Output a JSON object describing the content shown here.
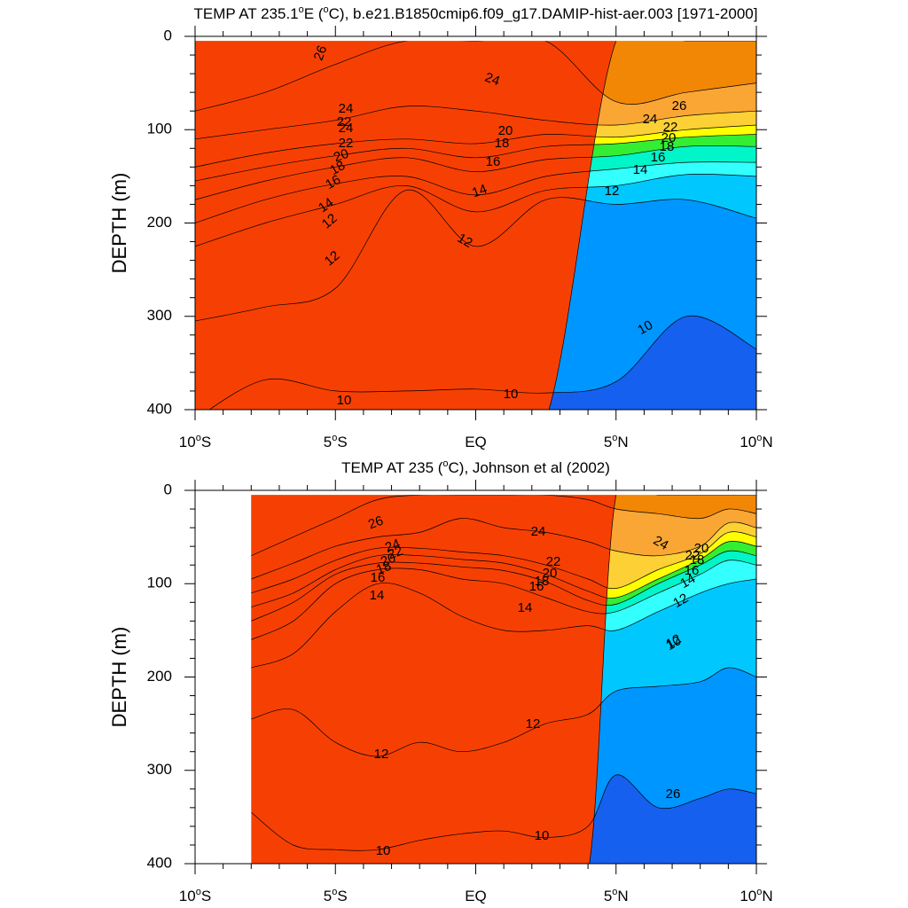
{
  "chart_data": [
    {
      "type": "filled-contour",
      "title_prefix": "TEMP AT 235.1",
      "title_sup": "o",
      "title_suffix": "E (",
      "title_sup2": "o",
      "title_tail": "C), b.e21.B1850cmip6.f09_g17.DAMIP-hist-aer.003 [1971-2000]",
      "ylabel": "DEPTH (m)",
      "xlim": [
        -10,
        10
      ],
      "ylim": [
        400,
        0
      ],
      "yticks": [
        "0",
        "100",
        "200",
        "300",
        "400"
      ],
      "xticks": [
        {
          "num": "10",
          "sup": "o",
          "hemi": "S"
        },
        {
          "num": "5",
          "sup": "o",
          "hemi": "S"
        },
        {
          "num": "EQ",
          "sup": "",
          "hemi": ""
        },
        {
          "num": "5",
          "sup": "o",
          "hemi": "N"
        },
        {
          "num": "10",
          "sup": "o",
          "hemi": "N"
        }
      ],
      "data_x_range": [
        -10,
        10
      ],
      "x": [
        -10,
        -7.5,
        -5,
        -2.5,
        0,
        2.5,
        5,
        7.5,
        10
      ],
      "isotherm_depths": {
        "10": [
          null,
          368,
          380,
          380,
          378,
          382,
          370,
          300,
          335
        ],
        "12": [
          305,
          290,
          270,
          165,
          225,
          175,
          180,
          175,
          195
        ],
        "14": [
          225,
          200,
          180,
          160,
          188,
          165,
          160,
          148,
          150
        ],
        "16": [
          200,
          175,
          158,
          150,
          170,
          150,
          142,
          135,
          135
        ],
        "18": [
          175,
          155,
          140,
          130,
          145,
          132,
          128,
          118,
          118
        ],
        "20": [
          155,
          140,
          128,
          120,
          130,
          118,
          115,
          108,
          105
        ],
        "22": [
          140,
          125,
          115,
          110,
          115,
          105,
          108,
          100,
          95
        ],
        "24": [
          110,
          100,
          90,
          75,
          80,
          90,
          95,
          85,
          80
        ],
        "26": [
          80,
          60,
          30,
          5,
          5,
          5,
          70,
          60,
          50
        ],
        "27": [
          null,
          null,
          null,
          null,
          null,
          null,
          5,
          5,
          5
        ]
      },
      "contour_labels": [
        "26",
        "24",
        "24",
        "22",
        "20",
        "18",
        "16",
        "14",
        "12",
        "12",
        "10",
        "10",
        "10",
        "26",
        "24",
        "22",
        "20",
        "18",
        "16",
        "14",
        "12",
        "24",
        "22",
        "20",
        "18",
        "16",
        "14",
        "12"
      ]
    },
    {
      "type": "filled-contour",
      "title_prefix": "TEMP AT 235 (",
      "title_sup": "o",
      "title_tail": "C), Johnson et al (2002)",
      "ylabel": "DEPTH (m)",
      "xlim": [
        -10,
        10
      ],
      "ylim": [
        400,
        0
      ],
      "yticks": [
        "0",
        "100",
        "200",
        "300",
        "400"
      ],
      "xticks": [
        {
          "num": "10",
          "sup": "o",
          "hemi": "S"
        },
        {
          "num": "5",
          "sup": "o",
          "hemi": "S"
        },
        {
          "num": "EQ",
          "sup": "",
          "hemi": ""
        },
        {
          "num": "5",
          "sup": "o",
          "hemi": "N"
        },
        {
          "num": "10",
          "sup": "o",
          "hemi": "N"
        }
      ],
      "data_x_range": [
        -8,
        10
      ],
      "x": [
        -8,
        -6.5,
        -5,
        -3.5,
        -2,
        -0.5,
        1,
        2.5,
        4,
        5,
        6.5,
        8,
        9,
        10
      ],
      "isotherm_depths": {
        "10": [
          345,
          380,
          385,
          385,
          375,
          368,
          365,
          372,
          360,
          305,
          340,
          330,
          320,
          325
        ],
        "12": [
          245,
          235,
          270,
          285,
          270,
          280,
          270,
          250,
          240,
          215,
          210,
          205,
          190,
          200
        ],
        "14": [
          190,
          175,
          130,
          100,
          110,
          135,
          150,
          150,
          145,
          150,
          130,
          110,
          100,
          95
        ],
        "16": [
          160,
          140,
          100,
          85,
          85,
          95,
          100,
          115,
          130,
          130,
          110,
          90,
          75,
          80
        ],
        "18": [
          140,
          120,
          90,
          78,
          78,
          82,
          86,
          98,
          118,
          122,
          100,
          80,
          65,
          70
        ],
        "20": [
          125,
          110,
          85,
          70,
          70,
          74,
          78,
          90,
          108,
          115,
          95,
          74,
          55,
          60
        ],
        "22": [
          110,
          95,
          75,
          62,
          62,
          66,
          70,
          80,
          95,
          105,
          85,
          68,
          45,
          50
        ],
        "24": [
          95,
          78,
          60,
          50,
          45,
          30,
          40,
          45,
          55,
          65,
          70,
          60,
          35,
          40
        ],
        "26": [
          70,
          50,
          30,
          10,
          5,
          5,
          5,
          5,
          10,
          20,
          25,
          30,
          20,
          25
        ],
        "27": [
          null,
          null,
          null,
          null,
          null,
          null,
          null,
          null,
          null,
          5,
          5,
          5,
          5,
          5
        ]
      },
      "contour_labels": [
        "26",
        "24",
        "22",
        "20",
        "18",
        "16",
        "14",
        "24",
        "22",
        "20",
        "18",
        "16",
        "14",
        "12",
        "12",
        "12",
        "10",
        "10",
        "26",
        "24",
        "22",
        "20",
        "18",
        "16",
        "14",
        "12",
        "10"
      ]
    }
  ]
}
